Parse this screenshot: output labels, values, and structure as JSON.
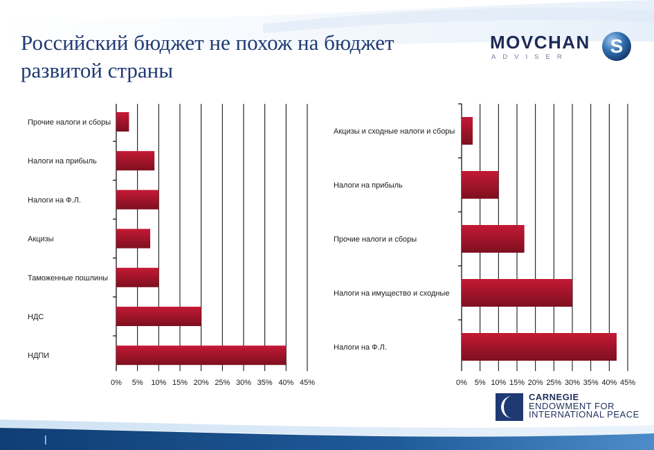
{
  "slide": {
    "title": "Российский бюджет не похож на бюджет развитой страны",
    "slide_marker": "|"
  },
  "logo": {
    "brand": "MOVCHAN",
    "tagline": "ADVISER",
    "mark": "S"
  },
  "footer": {
    "carnegie_line1": "CARNEGIE",
    "carnegie_line2": "ENDOWMENT FOR",
    "carnegie_line3": "INTERNATIONAL PEACE"
  },
  "colors": {
    "bar_top": "#c41a35",
    "bar_bottom": "#7d0f1f",
    "title": "#1f3a73",
    "swoosh": "#1f5a99"
  },
  "chart_data": [
    {
      "type": "bar",
      "orientation": "horizontal",
      "title": "",
      "xlabel": "",
      "ylabel": "",
      "categories": [
        "Прочие налоги и сборы",
        "Налоги на прибыль",
        "Налоги на Ф.Л.",
        "Акцизы",
        "Таможенные пошлины",
        "НДС",
        "НДПИ"
      ],
      "values": [
        3,
        9,
        10,
        8,
        10,
        20,
        40
      ],
      "unit": "%",
      "xlim": [
        0,
        45
      ],
      "xticks": [
        0,
        5,
        10,
        15,
        20,
        25,
        30,
        35,
        40,
        45
      ],
      "xtick_labels": [
        "0%",
        "5%",
        "10%",
        "15%",
        "20%",
        "25%",
        "30%",
        "35%",
        "40%",
        "45%"
      ],
      "grid": "vertical"
    },
    {
      "type": "bar",
      "orientation": "horizontal",
      "title": "",
      "xlabel": "",
      "ylabel": "",
      "categories": [
        "Акцизы и сходные налоги и сборы",
        "Налоги на прибыль",
        "Прочие налоги и сборы",
        "Налоги на имущество и сходные",
        "Налоги на Ф.Л."
      ],
      "values": [
        3,
        10,
        17,
        30,
        42
      ],
      "unit": "%",
      "xlim": [
        0,
        45
      ],
      "xticks": [
        0,
        5,
        10,
        15,
        20,
        25,
        30,
        35,
        40,
        45
      ],
      "xtick_labels": [
        "0%",
        "5%",
        "10%",
        "15%",
        "20%",
        "25%",
        "30%",
        "35%",
        "40%",
        "45%"
      ],
      "grid": "vertical"
    }
  ]
}
